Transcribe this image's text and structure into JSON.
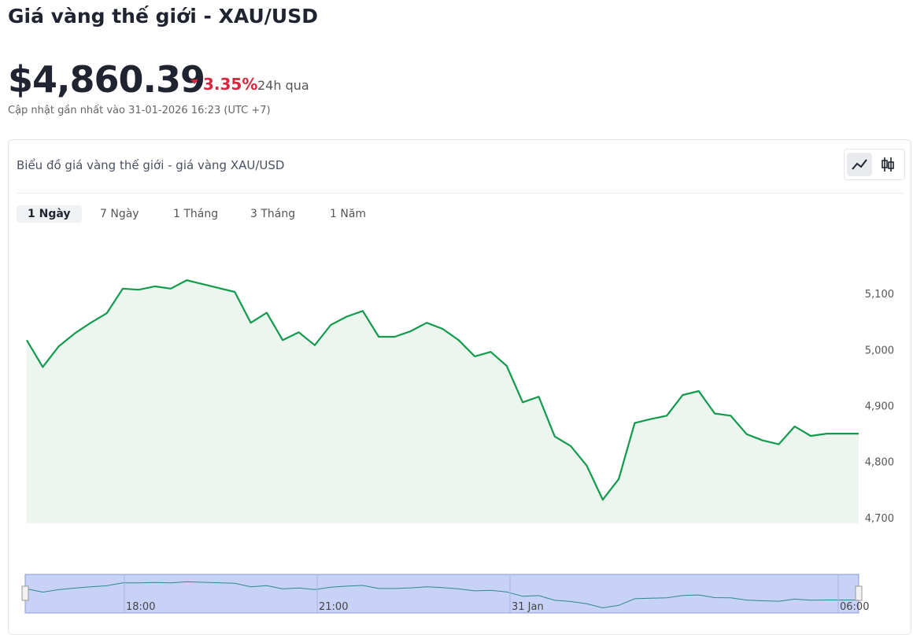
{
  "header": {
    "title": "Giá vàng thế giới - XAU/USD",
    "price": "$4,860.39",
    "change": "3.35%",
    "period": "24h qua",
    "updated": "Cập nhật gần nhất vào 31-01-2026 16:23 (UTC +7)"
  },
  "card": {
    "title": "Biểu đồ giá vàng thế giới - giá vàng XAU/USD",
    "tabs": [
      "1 Ngày",
      "7 Ngày",
      "1 Tháng",
      "3 Tháng",
      "1 Năm"
    ],
    "active_tab": 0
  },
  "chart_data": {
    "type": "line",
    "color": "#129a4d",
    "fill": "#ecf6ef",
    "categories": [
      null,
      null,
      null,
      null,
      null,
      null,
      null,
      null,
      null,
      null,
      null,
      null,
      null,
      null,
      null,
      null,
      null,
      null,
      null,
      null,
      null,
      null,
      null,
      null,
      null,
      null,
      null,
      null,
      null,
      null,
      null,
      null,
      null,
      null,
      null,
      null,
      null,
      null,
      null,
      null,
      null,
      null,
      null,
      null,
      null,
      null,
      null,
      null,
      null,
      null,
      null,
      null,
      null
    ],
    "values": [
      5017,
      4969,
      5006,
      5029,
      5048,
      5065,
      5109,
      5107,
      5113,
      5109,
      5124,
      5117,
      5110,
      5103,
      5048,
      5066,
      5017,
      5031,
      5008,
      5044,
      5059,
      5069,
      5023,
      5023,
      5033,
      5048,
      5037,
      5017,
      4988,
      4996,
      4971,
      4906,
      4916,
      4845,
      4828,
      4793,
      4732,
      4769,
      4869,
      4876,
      4882,
      4919,
      4926,
      4886,
      4882,
      4849,
      4838,
      4831,
      4863,
      4846,
      4850,
      4850,
      4850
    ],
    "ylim": [
      4690,
      5200
    ],
    "yticks": [
      {
        "value": 4700,
        "label": "4,700"
      },
      {
        "value": 4800,
        "label": "4,800"
      },
      {
        "value": 4900,
        "label": "4,900"
      },
      {
        "value": 5000,
        "label": "5,000"
      },
      {
        "value": 5100,
        "label": "5,100"
      }
    ],
    "navigator_labels": [
      "18:00",
      "21:00",
      "31 Jan",
      "06:00"
    ]
  }
}
